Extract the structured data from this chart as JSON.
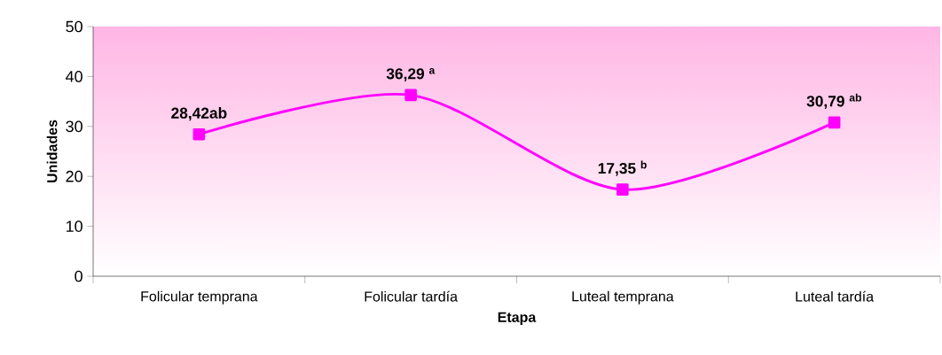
{
  "chart_data": {
    "type": "line",
    "xlabel": "Etapa",
    "ylabel": "Unidades",
    "categories": [
      "Folicular temprana",
      "Folicular tardía",
      "Luteal temprana",
      "Luteal tardía"
    ],
    "values": [
      28.42,
      36.29,
      17.35,
      30.79
    ],
    "value_labels": [
      "28,42ab",
      "36,29 $^{a}$",
      "17,35 $^{b}$",
      "30,79 $^{ab}$"
    ],
    "color": "#ff00ff",
    "marker": "square",
    "line_style": "solid",
    "ylim": [
      0,
      50
    ],
    "yticks": [
      0,
      10,
      20,
      30,
      40,
      50
    ],
    "grid": false
  }
}
